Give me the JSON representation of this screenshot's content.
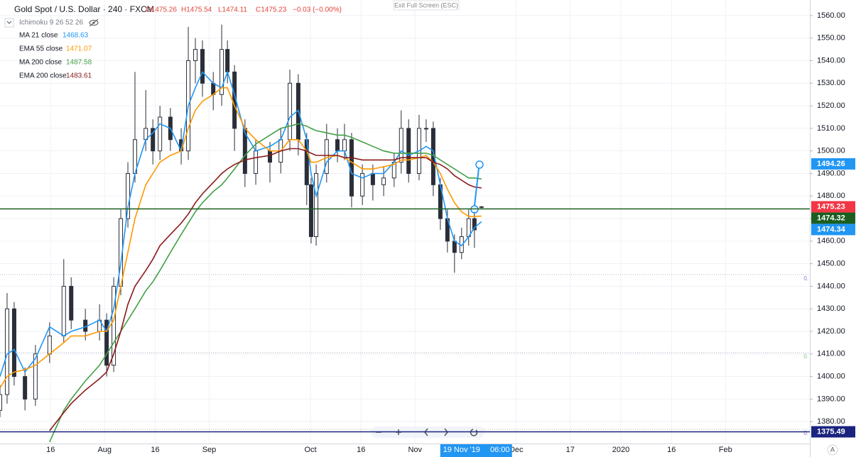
{
  "chart_data": {
    "type": "candlestick",
    "title": "Gold Spot / U.S. Dollar · 240 · FXCM",
    "ohlc_header": [
      "O1475.26",
      "H1475.54",
      "L1474.11",
      "C1475.23",
      "−0.03 (−0.00%)"
    ],
    "indicator": "Ichimoku 9 26 52 26",
    "x": [
      0,
      2.1,
      4.2,
      7.4,
      10.5,
      14.7,
      18.9,
      21.1,
      25.3,
      29.5,
      31.6,
      33.7,
      35.8,
      37.9,
      40,
      43.2,
      45.3,
      47.4,
      50.5,
      53.7,
      55.8,
      57.9,
      60,
      63.2,
      65.7,
      67.4,
      69.5,
      72.6,
      75.8,
      80,
      83.2,
      85.9,
      88.4,
      90.9,
      92.2,
      93.7,
      96.8,
      100,
      102.1,
      104.2,
      107.4,
      110.5,
      113.7,
      116.8,
      118.9,
      121.1,
      124.2,
      126.3,
      128.4,
      130.5,
      132.6,
      134.7,
      136.8,
      138.9,
      140.6,
      142.7
    ],
    "open": [
      1385,
      1392,
      1430,
      1400,
      1390,
      1410,
      1418,
      1440,
      1425,
      1420,
      1425,
      1405,
      1440,
      1470,
      1490,
      1505,
      1510,
      1500,
      1515,
      1505,
      1500,
      1540,
      1545,
      1530,
      1525,
      1545,
      1535,
      1510,
      1490,
      1500,
      1495,
      1505,
      1530,
      1505,
      1485,
      1462,
      1490,
      1505,
      1500,
      1505,
      1480,
      1490,
      1485,
      1488,
      1495,
      1510,
      1490,
      1510,
      1510,
      1485,
      1470,
      1460,
      1455,
      1462,
      1470,
      1475.26
    ],
    "high": [
      1396,
      1437,
      1433,
      1404,
      1414,
      1424,
      1452,
      1444,
      1430,
      1432,
      1428,
      1444,
      1474,
      1495,
      1535,
      1527,
      1514,
      1520,
      1519,
      1510,
      1555,
      1550,
      1549,
      1535,
      1556,
      1549,
      1538,
      1514,
      1505,
      1504,
      1510,
      1536,
      1534,
      1508,
      1488,
      1494,
      1512,
      1510,
      1512,
      1508,
      1494,
      1494,
      1493,
      1499,
      1518,
      1514,
      1516,
      1514,
      1513,
      1488,
      1474,
      1463,
      1466,
      1474,
      1473,
      1475.54
    ],
    "low": [
      1382,
      1388,
      1396,
      1385,
      1387,
      1406,
      1415,
      1421,
      1416,
      1416,
      1400,
      1402,
      1436,
      1466,
      1486,
      1500,
      1494,
      1496,
      1500,
      1494,
      1496,
      1530,
      1524,
      1518,
      1520,
      1530,
      1500,
      1484,
      1485,
      1486,
      1490,
      1500,
      1498,
      1476,
      1459,
      1458,
      1486,
      1495,
      1496,
      1475,
      1476,
      1478,
      1480,
      1484,
      1490,
      1486,
      1487,
      1504,
      1480,
      1465,
      1455,
      1446,
      1452,
      1458,
      1457,
      1474.11
    ],
    "close": [
      1392,
      1430,
      1400,
      1390,
      1410,
      1418,
      1440,
      1425,
      1420,
      1425,
      1405,
      1440,
      1470,
      1490,
      1505,
      1510,
      1500,
      1515,
      1505,
      1500,
      1540,
      1545,
      1530,
      1525,
      1545,
      1535,
      1510,
      1490,
      1500,
      1495,
      1505,
      1530,
      1505,
      1485,
      1462,
      1490,
      1505,
      1500,
      1505,
      1480,
      1490,
      1485,
      1488,
      1495,
      1510,
      1490,
      1510,
      1510,
      1485,
      1470,
      1460,
      1455,
      1462,
      1470,
      1465,
      1475.23
    ],
    "up_color": "#ffffff",
    "down_color": "#2a2e39",
    "wick_color": "#2a2e39",
    "series": [
      {
        "name": "MA 21 close",
        "color": "#2196f3",
        "values": [
          1400,
          1410,
          1412,
          1402,
          1408,
          1422,
          1418,
          1420,
          1422,
          1425,
          1420,
          1430,
          1450,
          1475,
          1490,
          1505,
          1508,
          1512,
          1510,
          1500,
          1520,
          1528,
          1535,
          1530,
          1528,
          1535,
          1525,
          1508,
          1500,
          1502,
          1505,
          1515,
          1518,
          1505,
          1490,
          1480,
          1495,
          1500,
          1500,
          1490,
          1488,
          1490,
          1490,
          1495,
          1500,
          1498,
          1500,
          1502,
          1500,
          1485,
          1470,
          1460,
          1458,
          1462,
          1466,
          1468.63
        ]
      },
      {
        "name": "EMA 55 close",
        "color": "#ff9800",
        "values": [
          1395,
          1400,
          1402,
          1403,
          1405,
          1410,
          1415,
          1418,
          1418,
          1420,
          1420,
          1425,
          1440,
          1455,
          1470,
          1485,
          1490,
          1495,
          1498,
          1500,
          1510,
          1518,
          1522,
          1525,
          1528,
          1528,
          1520,
          1510,
          1505,
          1500,
          1500,
          1505,
          1505,
          1500,
          1495,
          1495,
          1497,
          1498,
          1497,
          1495,
          1492,
          1492,
          1493,
          1494,
          1496,
          1496,
          1497,
          1498,
          1495,
          1490,
          1483,
          1477,
          1473,
          1471,
          1471,
          1471.07
        ]
      },
      {
        "name": "MA 200 close",
        "color": "#43a047",
        "values": [
          null,
          null,
          null,
          null,
          null,
          1371,
          1385,
          1390,
          1398,
          1405,
          1410,
          1415,
          1420,
          1425,
          1430,
          1438,
          1442,
          1447,
          1455,
          1463,
          1468,
          1473,
          1477,
          1482,
          1485,
          1488,
          1492,
          1498,
          1503,
          1507,
          1510,
          1511,
          1512,
          1511,
          1510,
          1509,
          1508,
          1507,
          1507,
          1506,
          1504,
          1502,
          1500,
          1499,
          1499,
          1499,
          1499,
          1499,
          1498,
          1496,
          1494,
          1492,
          1490,
          1488,
          1488,
          1487.58
        ]
      },
      {
        "name": "EMA 200 close",
        "color": "#8b1a1a",
        "values": [
          null,
          null,
          null,
          null,
          null,
          1376,
          1384,
          1388,
          1394,
          1399,
          1402,
          1410,
          1420,
          1432,
          1440,
          1447,
          1452,
          1458,
          1463,
          1468,
          1472,
          1477,
          1481,
          1486,
          1490,
          1492,
          1494,
          1496,
          1497,
          1498,
          1500,
          1501,
          1501,
          1500,
          1499,
          1498,
          1498,
          1498,
          1497,
          1497,
          1496,
          1496,
          1496,
          1496,
          1497,
          1497,
          1497,
          1497,
          1495,
          1494,
          1492,
          1489,
          1487,
          1485,
          1484,
          1483.61
        ]
      }
    ],
    "xlim": [
      0,
      240
    ],
    "xticks": [
      {
        "value": 15,
        "label": "16"
      },
      {
        "value": 31,
        "label": "Aug"
      },
      {
        "value": 46,
        "label": "16"
      },
      {
        "value": 62,
        "label": "Sep"
      },
      {
        "value": 92,
        "label": "Oct"
      },
      {
        "value": 107,
        "label": "16"
      },
      {
        "value": 123,
        "label": "Nov"
      },
      {
        "value": 153,
        "label": "Dec"
      },
      {
        "value": 169,
        "label": "17"
      },
      {
        "value": 184,
        "label": "2020"
      },
      {
        "value": 199,
        "label": "16"
      },
      {
        "value": 215,
        "label": "Feb"
      }
    ],
    "ylim": [
      1370.3,
      1566.9
    ],
    "yticks": [
      {
        "value": 1380,
        "label": "1380.00"
      },
      {
        "value": 1390,
        "label": "1390.00"
      },
      {
        "value": 1400,
        "label": "1400.00"
      },
      {
        "value": 1410,
        "label": "1410.00"
      },
      {
        "value": 1420,
        "label": "1420.00"
      },
      {
        "value": 1430,
        "label": "1430.00"
      },
      {
        "value": 1440,
        "label": "1440.00"
      },
      {
        "value": 1450,
        "label": "1450.00"
      },
      {
        "value": 1460,
        "label": "1460.00"
      },
      {
        "value": 1470,
        "label": "1470.00"
      },
      {
        "value": 1480,
        "label": "1480.00"
      },
      {
        "value": 1490,
        "label": "1490.00"
      },
      {
        "value": 1500,
        "label": "1500.00"
      },
      {
        "value": 1510,
        "label": "1510.00"
      },
      {
        "value": 1520,
        "label": "1520.00"
      },
      {
        "value": 1530,
        "label": "1530.00"
      },
      {
        "value": 1540,
        "label": "1540.00"
      },
      {
        "value": 1550,
        "label": "1550.00"
      },
      {
        "value": 1560,
        "label": "1560.00"
      }
    ],
    "grid": true,
    "price_lines": [
      {
        "value": 1474.32,
        "color": "#1b5e20"
      },
      {
        "value": 1375.49,
        "color": "#1a237e"
      }
    ],
    "price_badges": [
      {
        "value": 1494.26,
        "color": "#2196f3"
      },
      {
        "value": 1475.23,
        "color": "#f23645"
      },
      {
        "value": 1474.32,
        "color": "#1b5e20"
      },
      {
        "value": 1474.34,
        "color": "#2196f3"
      },
      {
        "value": 1375.49,
        "color": "#1a237e"
      }
    ],
    "levels": [
      {
        "value": 1445.2,
        "label": "0.",
        "color": "#9575cd"
      },
      {
        "value": 1410.6,
        "label": "0.",
        "color": "#81c784"
      },
      {
        "value": 1376.6,
        "label": "0.",
        "color": "#9575cd"
      }
    ],
    "cursor": {
      "x": 141,
      "label": "19 Nov '19",
      "time": "06:00"
    }
  },
  "ui": {
    "exit": "Exit Full Screen (ESC)",
    "corner": "A"
  }
}
